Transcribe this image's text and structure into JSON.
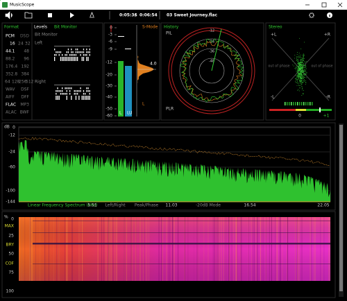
{
  "window": {
    "title": "MusicScope"
  },
  "toolbar": {
    "elapsed": "0:05:36",
    "separator": "/",
    "duration": "0:06:54",
    "file": "03 Sweet Journey.flac"
  },
  "format": {
    "title": "Format",
    "codecs": [
      [
        "PCM",
        "DSD"
      ],
      [
        "WAV",
        "DSF"
      ],
      [
        "AIFF",
        "DFF"
      ],
      [
        "FLAC",
        "MP3"
      ],
      [
        "ALAC",
        "BWF"
      ]
    ],
    "bits": [
      "16",
      "24",
      "32"
    ],
    "rates": [
      [
        "44.1",
        "48"
      ],
      [
        "88.2",
        "96"
      ],
      [
        "176.4",
        "192"
      ],
      [
        "352.8",
        "384"
      ]
    ],
    "dsd_rates": [
      "64",
      "128",
      "256",
      "512"
    ]
  },
  "levels": {
    "title": "Levels",
    "tab": "Bit Monitor",
    "subtitle": "Bit Monitor",
    "left": "Left",
    "right": "Right"
  },
  "meters": {
    "scale": [
      "0",
      "-3",
      "-6",
      "-9",
      "-12",
      "-20",
      "-30",
      "-40",
      "-50",
      "-60"
    ],
    "mode": "S-Mode",
    "loudness": "4.0",
    "labels": [
      "L",
      "LU",
      "L"
    ]
  },
  "history": {
    "title": "History",
    "top": "PIL",
    "bottom": "PLR",
    "rings": [
      "-12",
      "-24",
      "-36",
      "-48"
    ]
  },
  "stereo": {
    "title": "Stereo",
    "corners": [
      "+L",
      "+R",
      "-R",
      "-L"
    ],
    "phase": [
      "out of phase",
      "out of phase"
    ],
    "scale": [
      "0",
      "+1"
    ]
  },
  "spectrum": {
    "unit": "dB",
    "yticks": [
      "0",
      "-12",
      "-24",
      "-60",
      "-100",
      "-144"
    ],
    "caption": "Linear Frequency Spectrum (kHz)",
    "xticks": [
      "5.51",
      "11.03",
      "16.54",
      "22.05"
    ],
    "modes": [
      "Left/Right",
      "Peak/Phase",
      "-20dB Mode"
    ]
  },
  "spectrogram": {
    "unit": "%",
    "ticks": [
      "0",
      "MAX",
      "25",
      "BRY",
      "50",
      "COF",
      "75",
      "100"
    ]
  }
}
